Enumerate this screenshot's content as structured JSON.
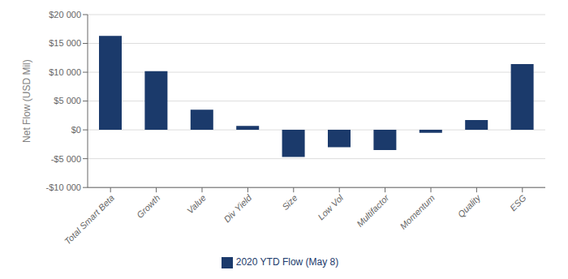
{
  "chart_data": {
    "type": "bar",
    "categories": [
      "Total Smart Beta",
      "Growth",
      "Value",
      "Div Yield",
      "Size",
      "Low Vol",
      "Multifactor",
      "Momentum",
      "Quality",
      "ESG"
    ],
    "series": [
      {
        "name": "2020 YTD Flow (May 8)",
        "color": "#1b3a6b",
        "values": [
          16300,
          10200,
          3500,
          700,
          -4700,
          -3000,
          -3500,
          -500,
          1700,
          11400
        ]
      }
    ],
    "ylabel": "Net Flow (USD Mil)",
    "ylim": [
      -10000,
      20000
    ],
    "yticks": [
      {
        "value": -10000,
        "label": "-$10 000"
      },
      {
        "value": -5000,
        "label": "-$5 000"
      },
      {
        "value": 0,
        "label": "$0"
      },
      {
        "value": 5000,
        "label": "$5 000"
      },
      {
        "value": 10000,
        "label": "$10 000"
      },
      {
        "value": 15000,
        "label": "$15 000"
      },
      {
        "value": 20000,
        "label": "$20 000"
      }
    ],
    "grid": true,
    "legend": "bottom"
  }
}
